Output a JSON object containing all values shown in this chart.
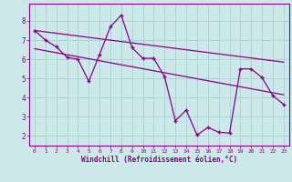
{
  "xlabel": "Windchill (Refroidissement éolien,°C)",
  "bg_color": "#cde8e8",
  "line_color": "#880088",
  "grid_color": "#aad4d4",
  "xlim": [
    -0.5,
    23.5
  ],
  "ylim": [
    1.5,
    8.9
  ],
  "yticks": [
    2,
    3,
    4,
    5,
    6,
    7,
    8
  ],
  "xticks": [
    0,
    1,
    2,
    3,
    4,
    5,
    6,
    7,
    8,
    9,
    10,
    11,
    12,
    13,
    14,
    15,
    16,
    17,
    18,
    19,
    20,
    21,
    22,
    23
  ],
  "jagged_x": [
    0,
    1,
    2,
    3,
    4,
    5,
    6,
    7,
    8,
    9,
    10,
    11,
    12,
    13,
    14,
    15,
    16,
    17,
    18,
    19,
    20,
    21,
    22,
    23
  ],
  "jagged_y": [
    7.5,
    7.0,
    6.65,
    6.1,
    6.0,
    4.85,
    6.25,
    7.7,
    8.3,
    6.6,
    6.05,
    6.05,
    5.1,
    2.8,
    3.35,
    2.05,
    2.45,
    2.2,
    2.15,
    5.5,
    5.5,
    5.05,
    4.1,
    3.65
  ],
  "trend1_x": [
    0,
    23
  ],
  "trend1_y": [
    7.5,
    5.85
  ],
  "trend2_x": [
    0,
    23
  ],
  "trend2_y": [
    6.55,
    4.15
  ]
}
